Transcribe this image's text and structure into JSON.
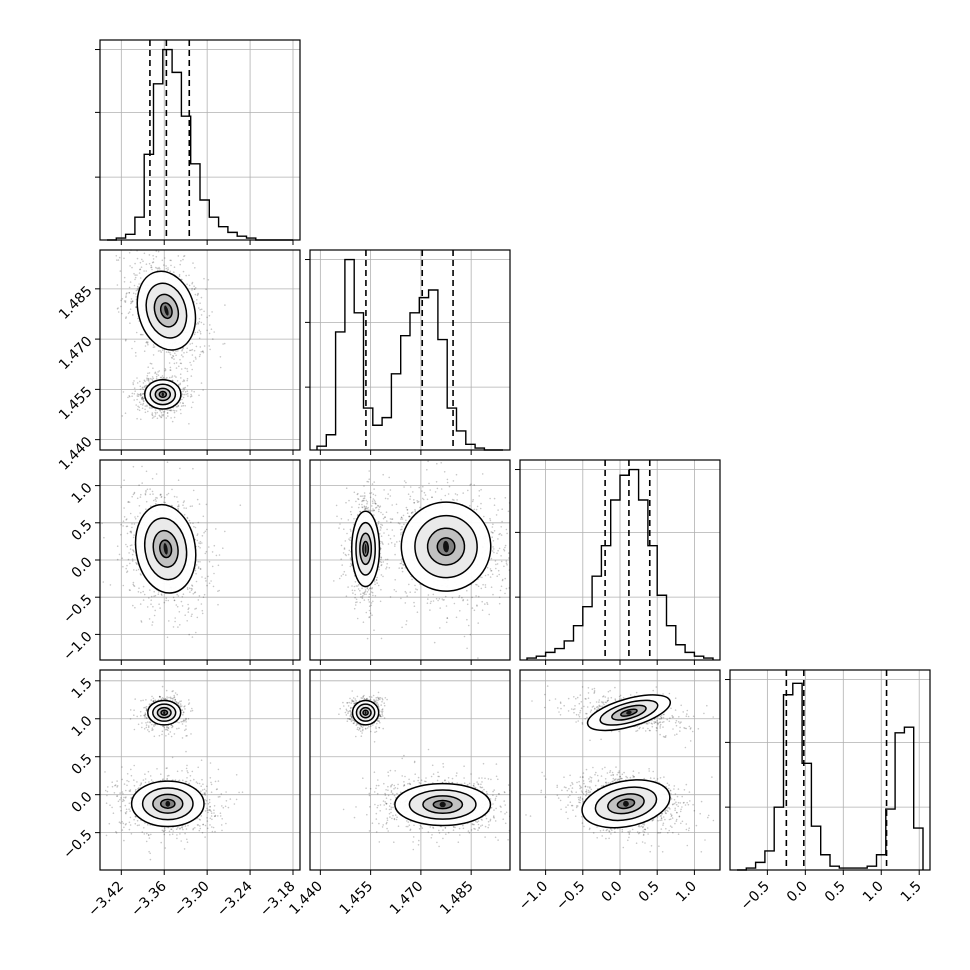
{
  "chart_data": {
    "type": "corner",
    "params": [
      {
        "range": [
          -3.44,
          -3.18
        ],
        "ticks": [
          -3.42,
          -3.36,
          -3.3,
          -3.24,
          -3.18
        ],
        "tick_labels": [
          "−3.42",
          "−3.36",
          "−3.30",
          "−3.24",
          "−3.18"
        ],
        "quantiles": [
          -3.38,
          -3.357,
          -3.325
        ],
        "hist_counts": [
          0,
          1,
          3,
          12,
          45,
          82,
          100,
          88,
          65,
          40,
          21,
          12,
          7,
          4,
          2,
          1,
          0,
          0,
          0,
          0
        ],
        "modes": [
          [
            -3.36,
            0.007,
            1
          ]
        ]
      },
      {
        "range": [
          1.439,
          1.4945
        ],
        "ticks": [
          1.44,
          1.455,
          1.47,
          1.485
        ],
        "tick_labels": [
          "1.440",
          "1.455",
          "1.470",
          "1.485"
        ],
        "quantiles": [
          1.4536,
          1.4704,
          1.4796
        ],
        "hist_counts": [
          2,
          8,
          62,
          100,
          72,
          22,
          13,
          17,
          40,
          60,
          72,
          80,
          84,
          58,
          22,
          10,
          3,
          1,
          0,
          0
        ],
        "modes": [
          [
            1.4535,
            0.0018,
            0.8
          ],
          [
            1.477,
            0.0055,
            1
          ]
        ]
      },
      {
        "range": [
          -1.25,
          1.25
        ],
        "ticks": [
          -1.0,
          -0.5,
          0.0,
          0.5,
          1.0
        ],
        "tick_labels": [
          "−1.0",
          "−0.5",
          "0.0",
          "0.5",
          "1.0"
        ],
        "quantiles": [
          -0.2,
          0.12,
          0.4
        ],
        "hist_counts": [
          1,
          2,
          4,
          6,
          10,
          18,
          28,
          44,
          60,
          84,
          97,
          100,
          84,
          60,
          34,
          18,
          8,
          4,
          2,
          1
        ],
        "modes": [
          [
            0.1,
            0.25,
            1
          ]
        ]
      },
      {
        "range": [
          -0.9,
          1.55
        ],
        "ticks": [
          -0.5,
          0.0,
          0.5,
          1.0,
          1.5
        ],
        "tick_labels": [
          "−0.5",
          "0.0",
          "0.5",
          "1.0",
          "1.5"
        ],
        "quantiles": [
          -0.25,
          -0.02,
          1.07
        ],
        "hist_counts": [
          0,
          1,
          4,
          10,
          33,
          92,
          98,
          56,
          23,
          8,
          2,
          1,
          1,
          1,
          2,
          8,
          32,
          72,
          75,
          22
        ],
        "modes": [
          [
            -0.12,
            0.12,
            1
          ],
          [
            1.1,
            0.07,
            0.9
          ]
        ]
      }
    ],
    "hist_ylim": [
      0,
      105
    ],
    "hist_gridlines": [
      33,
      67,
      100
    ],
    "axis_labels": [
      "",
      "",
      "",
      ""
    ],
    "grid": true,
    "colors": {
      "scatter": "#000000",
      "contour": "#000000",
      "quantile": "#000000",
      "grid": "#b0b0b0"
    }
  }
}
